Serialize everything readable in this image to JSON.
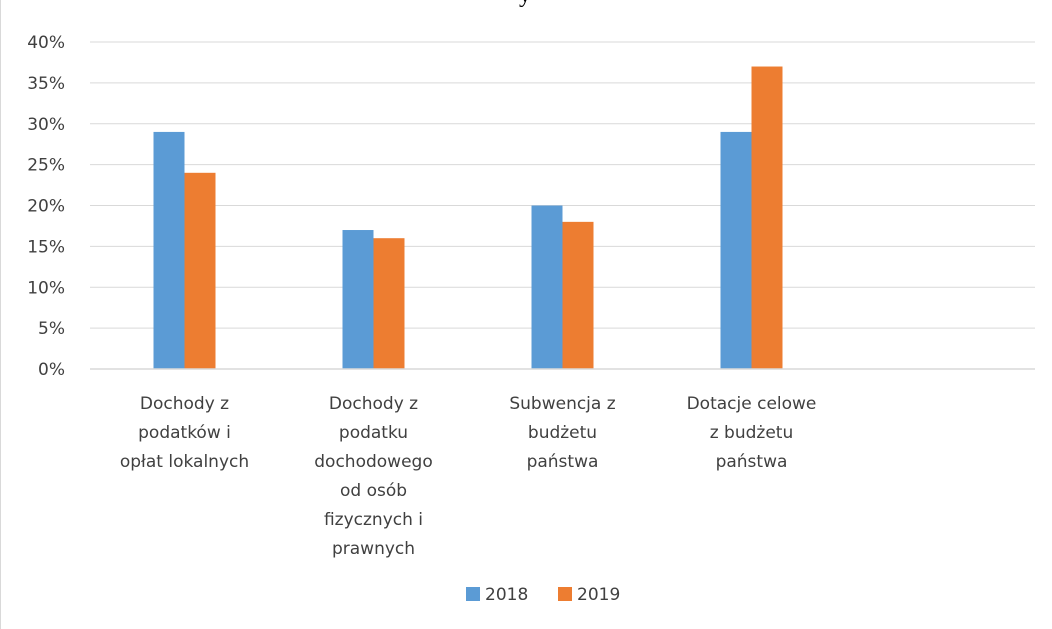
{
  "header": {
    "clipped_title": "y"
  },
  "chart_data": {
    "type": "bar",
    "title": "",
    "xlabel": "",
    "ylabel": "",
    "ylim": [
      0,
      40
    ],
    "y_ticks": [
      "0%",
      "5%",
      "10%",
      "15%",
      "20%",
      "25%",
      "30%",
      "35%",
      "40%"
    ],
    "grid": true,
    "legend_position": "bottom",
    "categories": [
      [
        "Dochody z",
        "podatków i",
        "opłat lokalnych"
      ],
      [
        "Dochody z",
        "podatku",
        "dochodowego",
        "od osób",
        "fizycznych i",
        "prawnych"
      ],
      [
        "Subwencja z",
        "budżetu",
        "państwa"
      ],
      [
        "Dotacje celowe",
        "z budżetu",
        "państwa"
      ],
      []
    ],
    "series": [
      {
        "name": "2018",
        "color": "#5b9bd5",
        "values": [
          29,
          17,
          20,
          29,
          null
        ]
      },
      {
        "name": "2019",
        "color": "#ed7d31",
        "values": [
          24,
          16,
          18,
          37,
          null
        ]
      }
    ]
  }
}
